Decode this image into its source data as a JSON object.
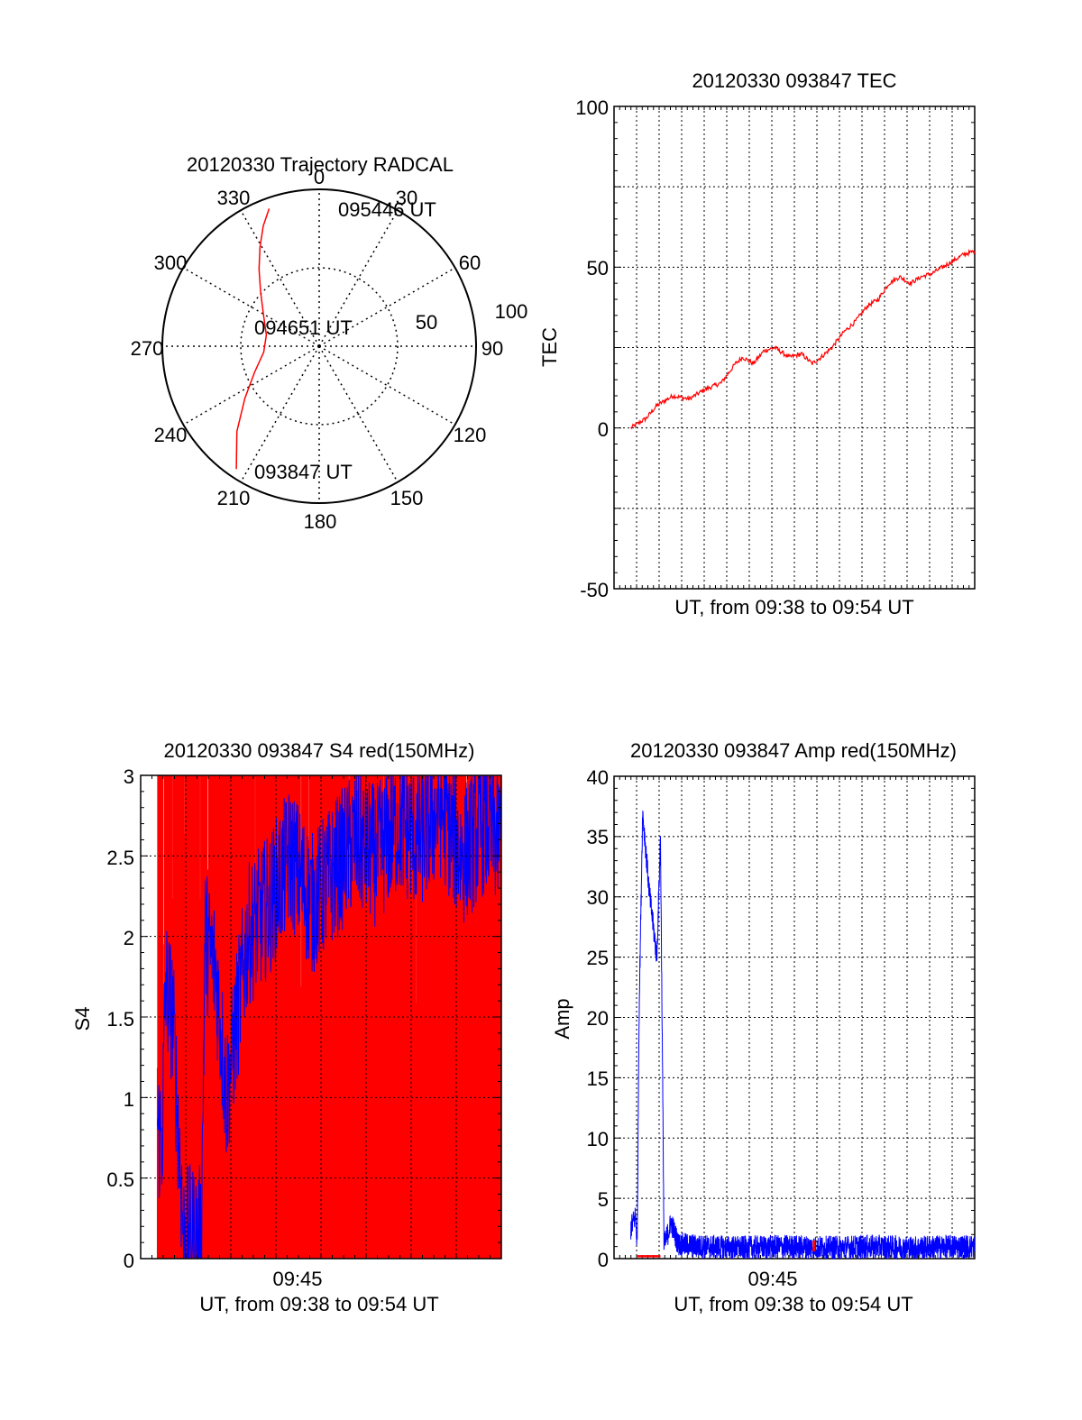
{
  "chart_data": [
    {
      "id": "polar",
      "type": "polar-trajectory",
      "title": "20120330 Trajectory RADCAL",
      "azimuth_labels": [
        "0",
        "30",
        "60",
        "90",
        "120",
        "150",
        "180",
        "210",
        "240",
        "270",
        "300",
        "330"
      ],
      "radial_ticks": [
        "50",
        "100"
      ],
      "series": [
        {
          "color": "#ff0000",
          "points": [
            {
              "az": 214,
              "el": 5
            },
            {
              "az": 224,
              "el": 22
            },
            {
              "az": 235,
              "el": 38
            },
            {
              "az": 248,
              "el": 50
            },
            {
              "az": 264,
              "el": 58
            },
            {
              "az": 282,
              "el": 59
            },
            {
              "az": 300,
              "el": 53
            },
            {
              "az": 313,
              "el": 44
            },
            {
              "az": 322,
              "el": 34
            },
            {
              "az": 329,
              "el": 24
            },
            {
              "az": 335,
              "el": 14
            },
            {
              "az": 340,
              "el": 6
            }
          ]
        }
      ],
      "annotations": [
        {
          "text": "095446 UT",
          "az": 13,
          "el": 2
        },
        {
          "text": "094651 UT",
          "az": 286,
          "el": 72
        },
        {
          "text": "093847 UT",
          "az": 200,
          "el": 5
        }
      ]
    },
    {
      "id": "tec",
      "type": "line",
      "title": "20120330 093847 TEC",
      "ylabel": "TEC",
      "xlabel": "UT, from 09:38 to 09:54 UT",
      "xlim": [
        "09:38:00",
        "09:54:50"
      ],
      "ylim": [
        -50,
        100
      ],
      "yticks": [
        "100",
        "50",
        "0",
        "-50"
      ],
      "grid": true,
      "series": [
        {
          "color": "#ff0000",
          "x": [
            "09:38:47",
            "09:39:30",
            "09:40:00",
            "09:40:45",
            "09:41:30",
            "09:42:15",
            "09:43:00",
            "09:43:40",
            "09:44:00",
            "09:44:30",
            "09:45:00",
            "09:45:30",
            "09:46:10",
            "09:46:45",
            "09:47:15",
            "09:47:40",
            "09:48:10",
            "09:48:45",
            "09:49:15",
            "09:49:50",
            "09:50:20",
            "09:50:50",
            "09:51:20",
            "09:51:50",
            "09:52:20",
            "09:52:50",
            "09:53:20",
            "09:53:50",
            "09:54:20",
            "09:54:50"
          ],
          "values": [
            0,
            3,
            7,
            10,
            9,
            12,
            14,
            20,
            22,
            20,
            24,
            25,
            22,
            23,
            20,
            22,
            25,
            30,
            33,
            38,
            40,
            45,
            47,
            45,
            47,
            48,
            50,
            52,
            54,
            55
          ]
        }
      ]
    },
    {
      "id": "s4",
      "type": "line",
      "title": "20120330 093847 S4 red(150MHz)",
      "ylabel": "S4",
      "xlabel": "UT, from 09:38 to 09:54 UT",
      "xtick_labels": [
        "09:45"
      ],
      "xlim": [
        "09:38:00",
        "09:54:50"
      ],
      "ylim": [
        0,
        3
      ],
      "yticks": [
        "3",
        "2.5",
        "2",
        "1.5",
        "1",
        "0.5",
        "0"
      ],
      "grid": true,
      "series": [
        {
          "color": "#ff0000",
          "x": [
            "09:38:47",
            "09:54:50"
          ],
          "values": [
            0,
            3
          ]
        },
        {
          "color": "#0000ff",
          "x": [
            "09:38:47",
            "09:39:00",
            "09:39:10",
            "09:39:30",
            "09:40:00",
            "09:40:30",
            "09:40:50",
            "09:41:00",
            "09:41:30",
            "09:42:00",
            "09:43:00",
            "09:44:00",
            "09:45:00",
            "09:46:00",
            "09:47:00",
            "09:48:00",
            "09:49:00",
            "09:50:00",
            "09:51:00",
            "09:52:00",
            "09:53:00",
            "09:54:00",
            "09:54:50"
          ],
          "values": [
            0.8,
            0.75,
            1.7,
            1.5,
            0.14,
            0.14,
            0.14,
            2.0,
            1.8,
            1.0,
            2.0,
            2.2,
            2.5,
            2.2,
            2.4,
            2.6,
            2.5,
            2.7,
            2.6,
            2.8,
            2.5,
            2.7,
            2.6
          ]
        }
      ]
    },
    {
      "id": "amp",
      "type": "line",
      "title": "20120330 093847 Amp red(150MHz)",
      "ylabel": "Amp",
      "xlabel": "UT, from 09:38 to 09:54 UT",
      "xtick_labels": [
        "09:45"
      ],
      "xlim": [
        "09:38:00",
        "09:54:50"
      ],
      "ylim": [
        0,
        40
      ],
      "yticks": [
        "40",
        "35",
        "30",
        "25",
        "20",
        "15",
        "10",
        "5",
        "0"
      ],
      "grid": true,
      "series": [
        {
          "color": "#ff0000",
          "x": [
            "09:39:05",
            "09:40:10",
            "09:47:20",
            "09:47:30"
          ],
          "values": [
            0.2,
            0.2,
            1.5,
            0.6
          ]
        },
        {
          "color": "#0000ff",
          "x": [
            "09:38:47",
            "09:39:00",
            "09:39:05",
            "09:39:10",
            "09:39:20",
            "09:39:40",
            "09:40:00",
            "09:40:10",
            "09:40:20",
            "09:40:40",
            "09:41:00",
            "09:42:00",
            "09:44:00",
            "09:46:00",
            "09:48:00",
            "09:50:00",
            "09:52:00",
            "09:54:00",
            "09:54:50"
          ],
          "values": [
            2.5,
            3.5,
            1.0,
            20,
            37,
            30,
            25,
            35,
            1.0,
            3.0,
            1.2,
            1.0,
            0.9,
            1.0,
            0.9,
            1.0,
            0.9,
            1.0,
            1.0
          ]
        }
      ]
    }
  ]
}
